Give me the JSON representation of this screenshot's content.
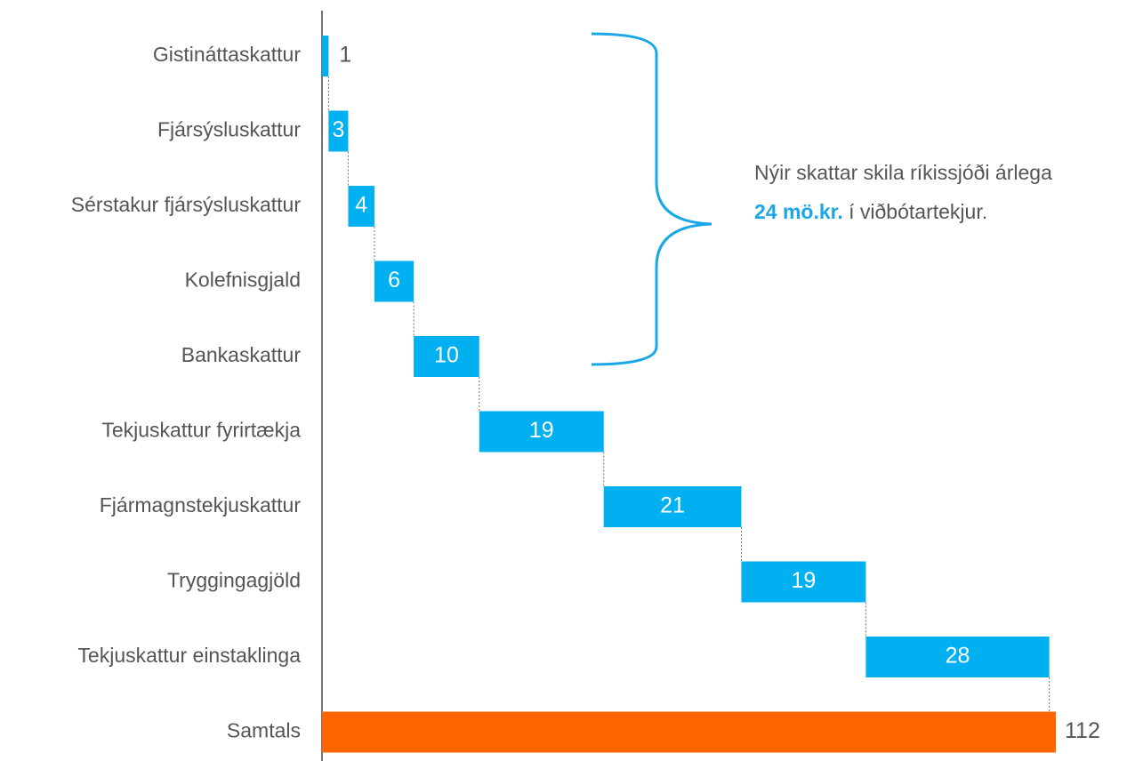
{
  "chart_data": {
    "type": "waterfall",
    "categories": [
      "Gistináttaskattur",
      "Fjársýsluskattur",
      "Sérstakur fjársýsluskattur",
      "Kolefnisgjald",
      "Bankaskattur",
      "Tekjuskattur fyrirtækja",
      "Fjármagnstekjuskattur",
      "Tryggingagjöld",
      "Tekjuskattur einstaklinga"
    ],
    "values": [
      1,
      3,
      4,
      6,
      10,
      19,
      21,
      19,
      28
    ],
    "total": {
      "label": "Samtals",
      "value": 112
    },
    "color": "#00b0f0",
    "total_color": "#ff6600",
    "annotation": {
      "line1": "Nýir skattar skila ríkissjóði árlega",
      "highlight": "24 mö.kr.",
      "line2": "í viðbótartekjur."
    }
  }
}
